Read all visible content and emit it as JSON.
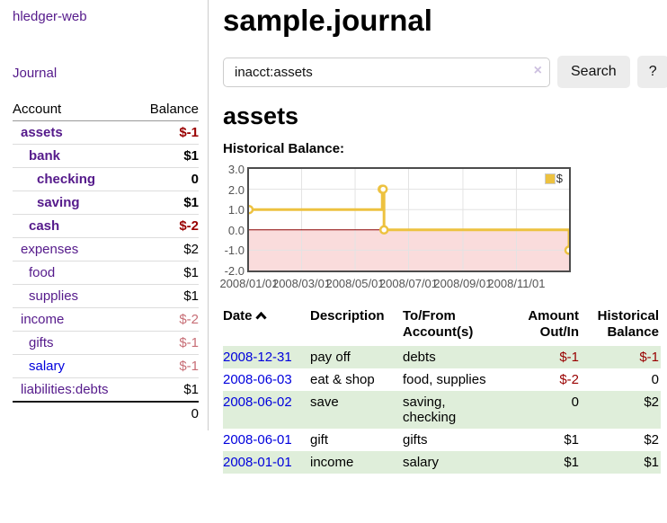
{
  "sidebar": {
    "brand": "hledger-web",
    "nav": {
      "journal": "Journal"
    },
    "table_headers": {
      "account": "Account",
      "balance": "Balance"
    },
    "accounts": [
      {
        "name": "assets",
        "balance": "$-1"
      },
      {
        "name": "bank",
        "balance": "$1"
      },
      {
        "name": "checking",
        "balance": "0"
      },
      {
        "name": "saving",
        "balance": "$1"
      },
      {
        "name": "cash",
        "balance": "$-2"
      },
      {
        "name": "expenses",
        "balance": "$2"
      },
      {
        "name": "food",
        "balance": "$1"
      },
      {
        "name": "supplies",
        "balance": "$1"
      },
      {
        "name": "income",
        "balance": "$-2"
      },
      {
        "name": "gifts",
        "balance": "$-1"
      },
      {
        "name": "salary",
        "balance": "$-1"
      },
      {
        "name": "liabilities:debts",
        "balance": "$1"
      }
    ],
    "total": "0"
  },
  "main": {
    "title": "sample.journal",
    "search": {
      "query": "inacct:assets",
      "button_label": "Search",
      "help_label": "?"
    },
    "account_heading": "assets"
  },
  "icons": {
    "clear": "×",
    "sort": "caret-up"
  },
  "chart_data": {
    "type": "line",
    "step": true,
    "title": "Historical Balance:",
    "legend": "$",
    "series": [
      {
        "name": "$",
        "color": "#edc240",
        "points": [
          [
            "2008-01-01",
            1
          ],
          [
            "2008-06-01",
            2
          ],
          [
            "2008-06-02",
            2
          ],
          [
            "2008-06-03",
            0
          ],
          [
            "2008-12-31",
            -1
          ]
        ]
      }
    ],
    "x_range": [
      "2008-01-01",
      "2008-12-31"
    ],
    "x_ticks": [
      "2008/01/01",
      "2008/03/01",
      "2008/05/01",
      "2008/07/01",
      "2008/09/01",
      "2008/11/01"
    ],
    "y_ticks": [
      "3.0",
      "2.0",
      "1.0",
      "0.0",
      "-1.0",
      "-2.0"
    ],
    "ylim": [
      -2,
      3
    ],
    "grid": true,
    "legend_position": "top-right",
    "negative_region_color": "#fadcdc",
    "zero_line_color": "#8b0000",
    "grid_color": "#e3e3e3"
  },
  "table": {
    "headers": {
      "date": "Date",
      "description": "Description",
      "to_from": "To/From Account(s)",
      "amount": "Amount Out/In",
      "balance": "Historical Balance"
    },
    "rows": [
      {
        "date": "2008-12-31",
        "description": "pay off",
        "to_from": "debts",
        "amount": "$-1",
        "balance": "$-1"
      },
      {
        "date": "2008-06-03",
        "description": "eat & shop",
        "to_from": "food, supplies",
        "amount": "$-2",
        "balance": "0"
      },
      {
        "date": "2008-06-02",
        "description": "save",
        "to_from": "saving,\nchecking",
        "amount": "0",
        "balance": "$2"
      },
      {
        "date": "2008-06-01",
        "description": "gift",
        "to_from": "gifts",
        "amount": "$1",
        "balance": "$2"
      },
      {
        "date": "2008-01-01",
        "description": "income",
        "to_from": "salary",
        "amount": "$1",
        "balance": "$1"
      }
    ]
  }
}
